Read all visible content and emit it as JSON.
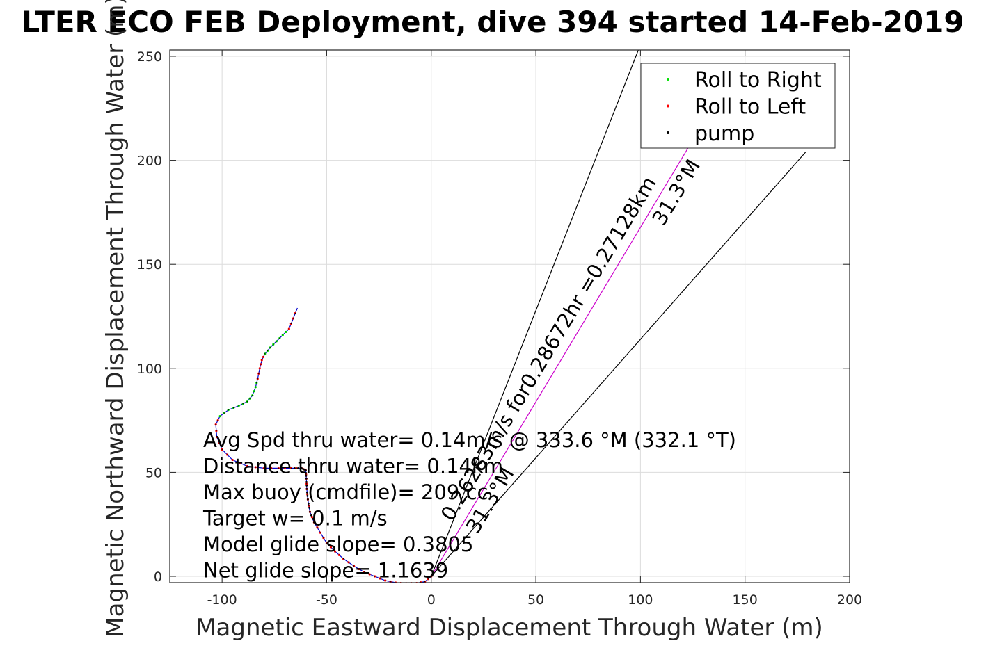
{
  "chart_data": {
    "type": "scatter",
    "title": "LTER ECO FEB Deployment, dive 394 started 14-Feb-2019",
    "xlabel": "Magnetic Eastward Displacement Through Water (m)",
    "ylabel": "Magnetic Northward Displacement Through Water (m)",
    "xlim": [
      -125,
      200
    ],
    "ylim": [
      -3,
      253
    ],
    "xticks": [
      -100,
      -50,
      0,
      50,
      100,
      150,
      200
    ],
    "yticks": [
      0,
      50,
      100,
      150,
      200,
      250
    ],
    "xtick_labels": [
      "-100",
      "-50",
      "0",
      "50",
      "100",
      "150",
      "200"
    ],
    "ytick_labels": [
      "0",
      "50",
      "100",
      "150",
      "200",
      "250"
    ],
    "grid": true,
    "legend_position": "top-right",
    "legend": [
      {
        "label": "Roll to Right",
        "color": "#00e000"
      },
      {
        "label": "Roll to Left",
        "color": "#ff0000"
      },
      {
        "label": "pump",
        "color": "#000000"
      }
    ],
    "track": {
      "color": "#0000cc",
      "x": [
        0,
        -3,
        -7,
        -12,
        -17,
        -22,
        -27,
        -32,
        -37,
        -42,
        -46,
        -50,
        -53,
        -56,
        -58,
        -59,
        -59.5,
        -59.7,
        -60,
        -62,
        -67,
        -73,
        -80,
        -88,
        -95,
        -100,
        -102.5,
        -103,
        -101,
        -97,
        -92,
        -88,
        -85.5,
        -84,
        -83,
        -82,
        -81,
        -79.5,
        -77,
        -74,
        -71,
        -68,
        -66,
        -64
      ],
      "y": [
        0,
        -2.5,
        -3.2,
        -3.3,
        -3,
        -2,
        0,
        2,
        5,
        8.5,
        12,
        16,
        21,
        26,
        31,
        37,
        42,
        47,
        51,
        52,
        52,
        52,
        52,
        53,
        56,
        61,
        67,
        73,
        77,
        80,
        82,
        84,
        87,
        91,
        95,
        100,
        104,
        107,
        110,
        113,
        116,
        119,
        124,
        129
      ]
    },
    "left_segments": [
      [
        0,
        28
      ],
      [
        34,
        37
      ],
      [
        41,
        43
      ]
    ],
    "right_segments": [
      [
        28,
        34
      ],
      [
        37,
        41
      ]
    ],
    "pump_segments": [
      [
        13,
        20
      ]
    ],
    "heading_lines": [
      {
        "x": [
          0,
          99
        ],
        "y": [
          0,
          253
        ],
        "color": "#000000"
      },
      {
        "x": [
          0,
          179
        ],
        "y": [
          0,
          204
        ],
        "color": "#000000"
      },
      {
        "x": [
          0,
          124
        ],
        "y": [
          0,
          208
        ],
        "color": "#cc00cc"
      }
    ],
    "rotated_labels": [
      {
        "text": "0.26283m/s for0.28672hr =0.27128km",
        "x": 10,
        "y": 26,
        "angle": -59
      },
      {
        "text": "31.3°M",
        "x": 111,
        "y": 168,
        "angle": -59
      },
      {
        "text": "31.3°M",
        "x": 22,
        "y": 20,
        "angle": -59
      }
    ],
    "annotations": [
      "Avg Spd thru water=  0.14m/s @ 333.6 °M (332.1 °T)",
      "Distance thru water=  0.14km",
      "Max buoy (cmdfile)= 209 cc",
      "Target w= 0.1 m/s",
      "Model glide slope= 0.3805",
      "Net glide slope= 1.1639"
    ]
  }
}
